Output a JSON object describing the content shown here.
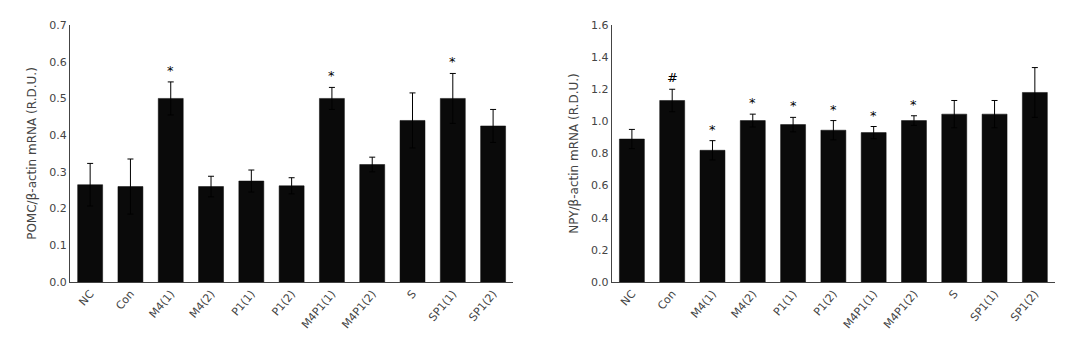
{
  "chart_data": [
    {
      "type": "bar",
      "ylabel": "POMC/β-actin mRNA (R.D.U.)",
      "categories": [
        "NC",
        "Con",
        "M4(1)",
        "M4(2)",
        "P1(1)",
        "P1(2)",
        "M4P1(1)",
        "M4P1(2)",
        "S",
        "SP1(1)",
        "SP1(2)"
      ],
      "values": [
        0.265,
        0.26,
        0.5,
        0.26,
        0.275,
        0.262,
        0.5,
        0.32,
        0.44,
        0.5,
        0.425
      ],
      "errors": [
        0.058,
        0.075,
        0.045,
        0.028,
        0.03,
        0.022,
        0.03,
        0.02,
        0.075,
        0.068,
        0.045
      ],
      "annotations": [
        {
          "x": "M4(1)",
          "text": "*"
        },
        {
          "x": "M4P1(1)",
          "text": "*"
        },
        {
          "x": "SP1(1)",
          "text": "*"
        }
      ],
      "color": "#0a0a0a",
      "ylim": [
        0.0,
        0.7
      ],
      "yticks": [
        {
          "value": 0.0,
          "label": "0.0"
        },
        0.1,
        0.2,
        0.3,
        0.4,
        0.5,
        0.6,
        0.7
      ],
      "grid": false
    },
    {
      "type": "bar",
      "ylabel": "NPY/β-actin mRNA (R.D.U.)",
      "categories": [
        "NC",
        "Con",
        "M4(1)",
        "M4(2)",
        "P1(1)",
        "P1(2)",
        "M4P1(1)",
        "M4P1(2)",
        "S",
        "SP1(1)",
        "SP1(2)"
      ],
      "values": [
        0.89,
        1.13,
        0.82,
        1.005,
        0.98,
        0.945,
        0.93,
        1.005,
        1.045,
        1.045,
        1.18
      ],
      "errors": [
        0.06,
        0.07,
        0.06,
        0.04,
        0.045,
        0.06,
        0.038,
        0.03,
        0.085,
        0.085,
        0.155
      ],
      "annotations": [
        {
          "x": "Con",
          "text": "#"
        },
        {
          "x": "M4(1)",
          "text": "*"
        },
        {
          "x": "M4(2)",
          "text": "*"
        },
        {
          "x": "P1(1)",
          "text": "*"
        },
        {
          "x": "P1(2)",
          "text": "*"
        },
        {
          "x": "M4P1(1)",
          "text": "*"
        },
        {
          "x": "M4P1(2)",
          "text": "*"
        }
      ],
      "color": "#0a0a0a",
      "ylim": [
        0.0,
        1.6
      ],
      "yticks": [
        {
          "value": 0.0,
          "label": "0.0"
        },
        0.2,
        0.4,
        0.6,
        0.8,
        {
          "value": 1.0,
          "label": "1.0"
        },
        1.2,
        1.4,
        1.6
      ],
      "grid": false
    }
  ]
}
